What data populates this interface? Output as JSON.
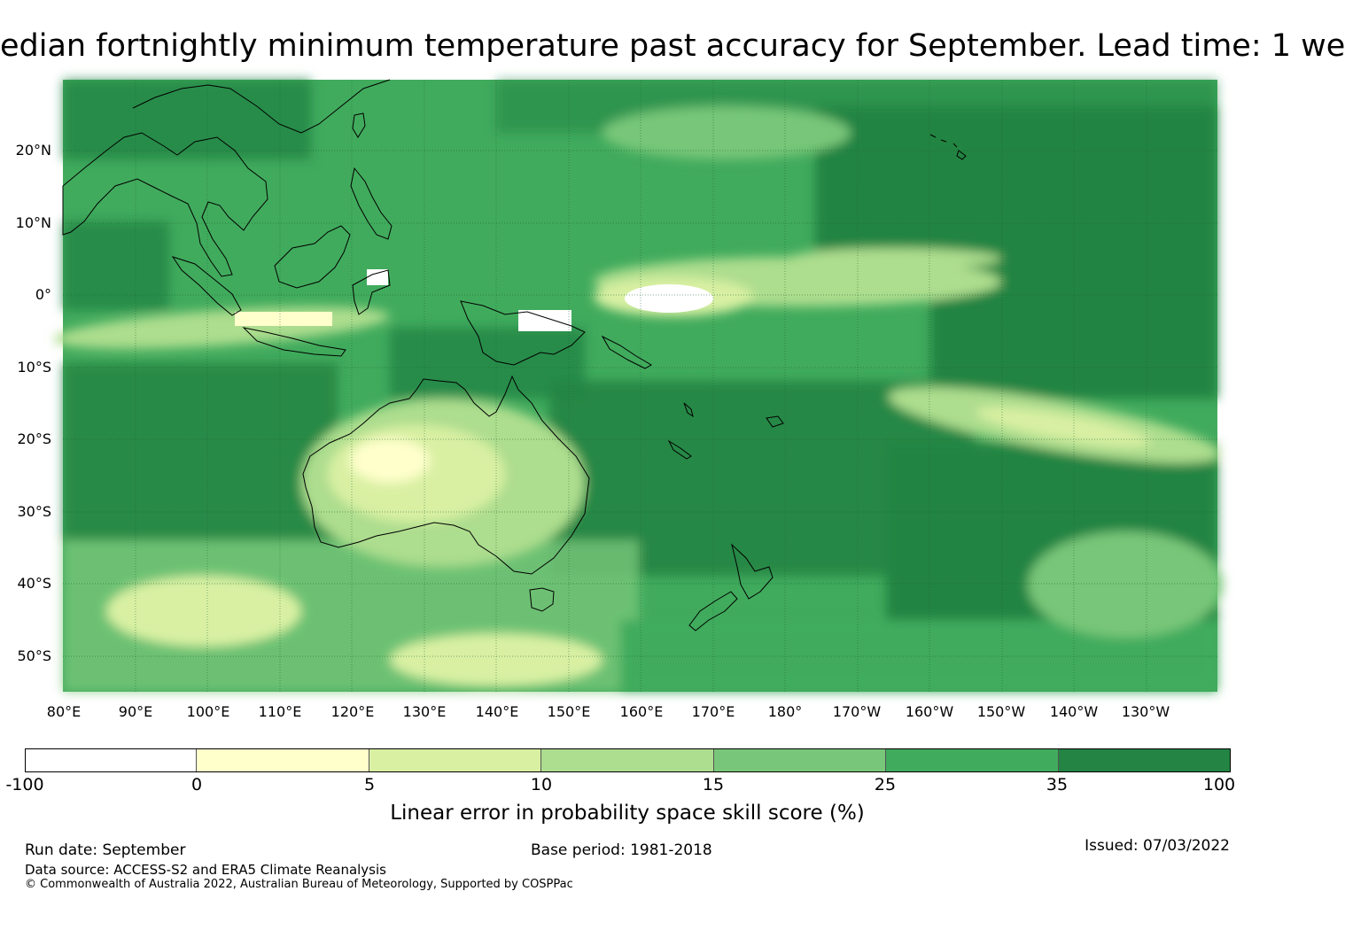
{
  "title": "edian fortnightly minimum temperature past accuracy for September. Lead time: 1 we",
  "map": {
    "lat_labels": [
      "20°N",
      "10°N",
      "0°",
      "10°S",
      "20°S",
      "30°S",
      "40°S",
      "50°S"
    ],
    "lon_labels": [
      "80°E",
      "90°E",
      "100°E",
      "110°E",
      "120°E",
      "130°E",
      "140°E",
      "150°E",
      "160°E",
      "170°E",
      "180°",
      "170°W",
      "160°W",
      "150°W",
      "140°W",
      "130°W"
    ]
  },
  "colorbar": {
    "colors": [
      "#ffffff",
      "#ffffcc",
      "#d9f0a3",
      "#addd8e",
      "#78c679",
      "#41ab5d",
      "#238443"
    ],
    "ticks": [
      "-100",
      "0",
      "5",
      "10",
      "15",
      "25",
      "35",
      "100"
    ],
    "label": "Linear error in probability space skill score (%)"
  },
  "footer": {
    "run_date": "Run date: September",
    "base_period": "Base period: 1981-2018",
    "issued": "Issued: 07/03/2022",
    "data_source": "Data source: ACCESS-S2 and ERA5 Climate Reanalysis",
    "copyright": "© Commonwealth of Australia 2022, Australian Bureau of Meteorology, Supported by COSPPac"
  }
}
